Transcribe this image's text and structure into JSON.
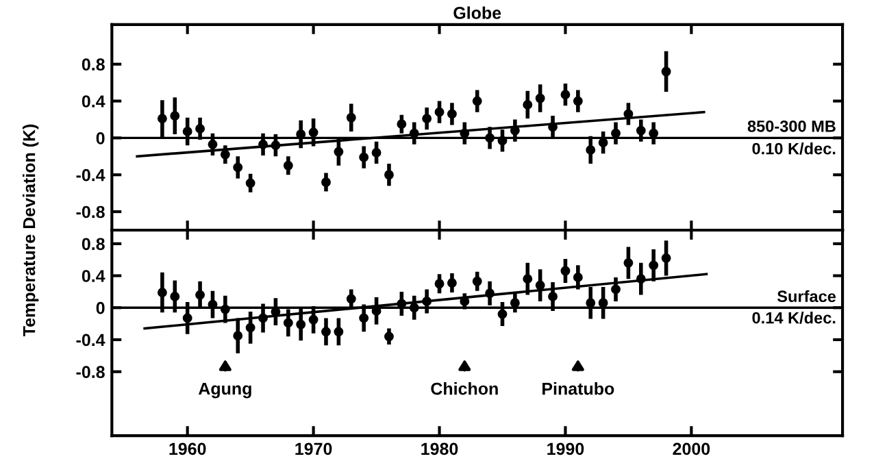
{
  "chart_data": [
    {
      "type": "scatter",
      "title": "Globe",
      "ylabel": "Temperature Deviation (K)",
      "tick_labels": "y",
      "grid": false,
      "xlim": [
        1954,
        2012
      ],
      "xticks": [
        1960,
        1970,
        1980,
        1990,
        2000
      ],
      "ylim": [
        -1.0,
        1.23
      ],
      "yticks": [
        0.8,
        0.4,
        0,
        -0.4,
        -0.8
      ],
      "x": [
        1958,
        1959,
        1960,
        1961,
        1962,
        1963,
        1964,
        1965,
        1966,
        1967,
        1968,
        1969,
        1970,
        1971,
        1972,
        1973,
        1974,
        1975,
        1976,
        1977,
        1978,
        1979,
        1980,
        1981,
        1982,
        1983,
        1984,
        1985,
        1986,
        1987,
        1988,
        1989,
        1990,
        1991,
        1992,
        1993,
        1994,
        1995,
        1996,
        1997,
        1998
      ],
      "series": [
        {
          "name": "850-300 MB",
          "color": "#000000",
          "marker": "circle",
          "values": [
            0.21,
            0.24,
            0.07,
            0.1,
            -0.07,
            -0.18,
            -0.32,
            -0.49,
            -0.07,
            -0.08,
            -0.3,
            0.04,
            0.06,
            -0.48,
            -0.15,
            0.22,
            -0.21,
            -0.16,
            -0.4,
            0.15,
            0.05,
            0.21,
            0.28,
            0.26,
            0.05,
            0.4,
            0.0,
            -0.03,
            0.08,
            0.36,
            0.43,
            0.12,
            0.47,
            0.4,
            -0.13,
            -0.05,
            0.05,
            0.26,
            0.08,
            0.05,
            0.72
          ],
          "errors": [
            0.2,
            0.2,
            0.15,
            0.12,
            0.12,
            0.1,
            0.12,
            0.1,
            0.12,
            0.12,
            0.1,
            0.15,
            0.15,
            0.1,
            0.15,
            0.15,
            0.12,
            0.12,
            0.12,
            0.1,
            0.12,
            0.12,
            0.12,
            0.12,
            0.12,
            0.12,
            0.12,
            0.12,
            0.12,
            0.15,
            0.15,
            0.12,
            0.12,
            0.12,
            0.15,
            0.12,
            0.12,
            0.12,
            0.12,
            0.12,
            0.22
          ]
        },
        {
          "type": "line",
          "color": "#000000",
          "x": [
            1956,
            2001
          ],
          "values": [
            -0.2,
            0.28
          ]
        }
      ],
      "ref_lines": [
        {
          "axis": "y",
          "value": 0,
          "color": "#000000"
        }
      ],
      "annotations": [
        "0.10 K/dec."
      ]
    },
    {
      "type": "scatter",
      "grid": false,
      "xlim": [
        1954,
        2012
      ],
      "xticks": [
        1960,
        1970,
        1980,
        1990,
        2000
      ],
      "ylim": [
        -1.6,
        0.97
      ],
      "yticks": [
        0.8,
        0.4,
        0,
        -0.4,
        -0.8
      ],
      "x": [
        1958,
        1959,
        1960,
        1961,
        1962,
        1963,
        1964,
        1965,
        1966,
        1967,
        1968,
        1969,
        1970,
        1971,
        1972,
        1973,
        1974,
        1975,
        1976,
        1977,
        1978,
        1979,
        1980,
        1981,
        1982,
        1983,
        1984,
        1985,
        1986,
        1987,
        1988,
        1989,
        1990,
        1991,
        1992,
        1993,
        1994,
        1995,
        1996,
        1997,
        1998
      ],
      "series": [
        {
          "name": "Surface",
          "color": "#000000",
          "marker": "circle",
          "values": [
            0.19,
            0.14,
            -0.13,
            0.16,
            0.04,
            -0.02,
            -0.35,
            -0.25,
            -0.13,
            -0.05,
            -0.19,
            -0.21,
            -0.15,
            -0.3,
            -0.3,
            0.11,
            -0.13,
            -0.04,
            -0.36,
            0.05,
            0.0,
            0.08,
            0.3,
            0.31,
            0.08,
            0.33,
            0.18,
            -0.08,
            0.06,
            0.36,
            0.28,
            0.14,
            0.46,
            0.38,
            0.06,
            0.06,
            0.23,
            0.56,
            0.36,
            0.53,
            0.62
          ],
          "errors": [
            0.25,
            0.2,
            0.2,
            0.17,
            0.17,
            0.17,
            0.22,
            0.2,
            0.18,
            0.17,
            0.17,
            0.2,
            0.17,
            0.17,
            0.17,
            0.12,
            0.17,
            0.17,
            0.1,
            0.15,
            0.15,
            0.15,
            0.12,
            0.12,
            0.1,
            0.12,
            0.15,
            0.15,
            0.12,
            0.2,
            0.2,
            0.18,
            0.15,
            0.15,
            0.2,
            0.2,
            0.15,
            0.2,
            0.2,
            0.2,
            0.22
          ]
        },
        {
          "type": "line",
          "color": "#000000",
          "x": [
            1956.6,
            2001.2
          ],
          "values": [
            -0.26,
            0.42
          ]
        }
      ],
      "ref_lines": [
        {
          "axis": "y",
          "value": 0,
          "color": "#000000"
        }
      ],
      "annotations": [
        "0.14 K/dec.",
        {
          "text": "Agung",
          "x": 1963
        },
        {
          "text": "Chichon",
          "x": 1982
        },
        {
          "text": "Pinatubo",
          "x": 1991
        }
      ]
    }
  ]
}
